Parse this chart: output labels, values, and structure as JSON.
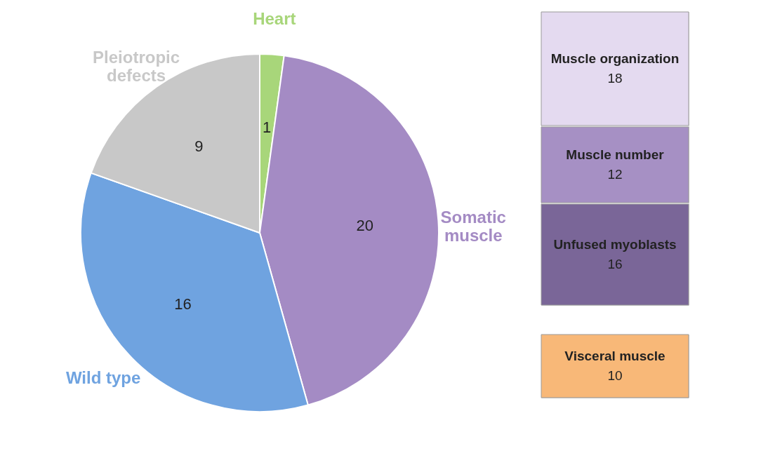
{
  "chart_data": [
    {
      "type": "pie",
      "categories": [
        "Heart",
        "Somatic muscle",
        "Wild type",
        "Pleiotropic defects"
      ],
      "values": [
        1,
        20,
        16,
        9
      ],
      "colors": [
        "#a8d67a",
        "#a48bc4",
        "#6fa3e0",
        "#c8c8c8"
      ],
      "data_labels": true
    },
    {
      "type": "other",
      "categories": [
        "Muscle organization",
        "Muscle number",
        "Unfused myoblasts"
      ],
      "values": [
        18,
        12,
        16
      ],
      "colors": [
        "#e4daf0",
        "#a690c4",
        "#7a6698"
      ],
      "data_labels": true
    },
    {
      "type": "other",
      "categories": [
        "Visceral muscle"
      ],
      "values": [
        10
      ],
      "colors": [
        "#f8b878"
      ],
      "data_labels": true
    }
  ]
}
